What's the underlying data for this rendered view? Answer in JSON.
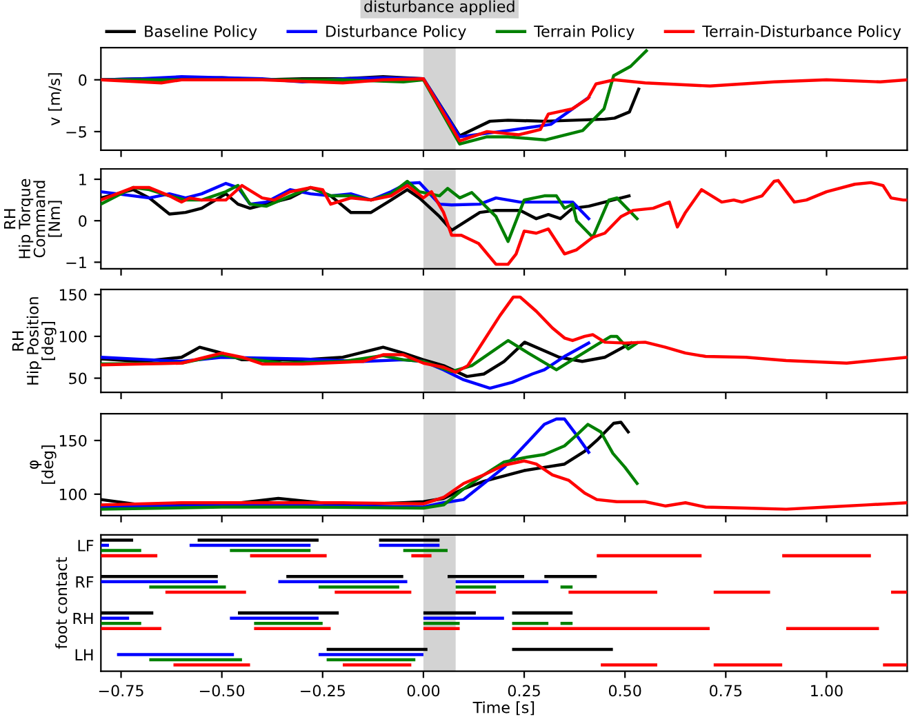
{
  "chart_data": [
    {
      "type": "line",
      "ylabel": "v [m/s]",
      "xlim": [
        -0.8,
        1.2
      ],
      "ylim": [
        -6.8,
        3.1
      ],
      "yticks": [
        {
          "value": -5,
          "label": "−5"
        },
        0
      ],
      "tick_labels": "y",
      "legend": "top",
      "grid": false,
      "bands": [
        {
          "axis": "x",
          "from": 0,
          "to": 0.08,
          "label": "disturbance applied",
          "color": "#d3d3d3"
        }
      ],
      "series": [
        {
          "name": "Baseline Policy",
          "color": "#000000",
          "x": [
            -0.8,
            -0.7,
            -0.6,
            -0.5,
            -0.4,
            -0.3,
            -0.2,
            -0.1,
            0,
            0.09,
            0.165,
            0.21,
            0.3,
            0.45,
            0.474,
            0.511,
            0.534
          ],
          "values": [
            0,
            0.1,
            0.1,
            0.2,
            0,
            0.1,
            0.1,
            0.3,
            0.1,
            -5.4,
            -4.0,
            -3.9,
            -4.0,
            -3.8,
            -3.7,
            -3.1,
            -0.9
          ]
        },
        {
          "name": "Disturbance Policy",
          "color": "#0000ff",
          "x": [
            -0.8,
            -0.7,
            -0.6,
            -0.5,
            -0.4,
            -0.3,
            -0.2,
            -0.1,
            0,
            0.09,
            0.21,
            0.316,
            0.41
          ],
          "values": [
            0,
            0.1,
            0.3,
            0.2,
            0.1,
            -0.2,
            0.1,
            0.2,
            0.1,
            -5.5,
            -4.9,
            -4.3,
            -1.7
          ]
        },
        {
          "name": "Terrain Policy",
          "color": "#008000",
          "x": [
            -0.8,
            -0.6,
            -0.4,
            -0.2,
            -0.05,
            0,
            0.09,
            0.158,
            0.21,
            0.303,
            0.395,
            0.448,
            0.472,
            0.514,
            0.553
          ],
          "values": [
            0,
            0,
            0,
            0,
            -0.2,
            0,
            -6.2,
            -5.5,
            -5.5,
            -5.8,
            -4.9,
            -2.8,
            0.4,
            1.3,
            2.8
          ]
        },
        {
          "name": "Terrain-Disturbance Policy",
          "color": "#ff0000",
          "x": [
            -0.8,
            -0.65,
            -0.6,
            -0.4,
            -0.2,
            -0.1,
            0,
            0.09,
            0.158,
            0.237,
            0.29,
            0.31,
            0.369,
            0.408,
            0.428,
            0.474,
            0.55,
            0.711,
            0.87,
            1.0,
            1.133,
            1.2
          ],
          "values": [
            0,
            -0.3,
            0,
            0,
            -0.3,
            0,
            0.1,
            -5.9,
            -5.0,
            -5.3,
            -4.8,
            -3.3,
            -2.8,
            -1.8,
            -0.4,
            0,
            -0.3,
            -0.6,
            -0.2,
            0,
            -0.2,
            0
          ]
        }
      ]
    },
    {
      "type": "line",
      "ylabel": "RH\nHip Torque\nCommand\n[Nm]",
      "xlim": [
        -0.8,
        1.2
      ],
      "ylim": [
        -1.16,
        1.25
      ],
      "yticks": [
        {
          "value": -1,
          "label": "−1"
        },
        0,
        1
      ],
      "tick_labels": "y",
      "grid": false,
      "bands": [
        {
          "axis": "x",
          "from": 0,
          "to": 0.08,
          "color": "#d3d3d3"
        }
      ],
      "series": [
        {
          "color": "#000000",
          "x": [
            -0.8,
            -0.72,
            -0.68,
            -0.63,
            -0.59,
            -0.55,
            -0.49,
            -0.46,
            -0.43,
            -0.39,
            -0.33,
            -0.28,
            -0.23,
            -0.18,
            -0.13,
            -0.08,
            -0.04,
            -0.01,
            0.04,
            0.07,
            0.14,
            0.18,
            0.24,
            0.28,
            0.31,
            0.34,
            0.37,
            0.41,
            0.45,
            0.51
          ],
          "values": [
            0.55,
            0.75,
            0.55,
            0.16,
            0.2,
            0.3,
            0.65,
            0.4,
            0.3,
            0.4,
            0.55,
            0.8,
            0.6,
            0.2,
            0.2,
            0.5,
            0.75,
            0.55,
            0.1,
            -0.23,
            0.2,
            0.25,
            0.25,
            0.05,
            0.15,
            0.05,
            0.3,
            0.35,
            0.45,
            0.6
          ]
        },
        {
          "color": "#0000ff",
          "x": [
            -0.8,
            -0.72,
            -0.68,
            -0.63,
            -0.59,
            -0.55,
            -0.49,
            -0.46,
            -0.43,
            -0.39,
            -0.33,
            -0.28,
            -0.23,
            -0.18,
            -0.13,
            -0.08,
            -0.04,
            -0.01,
            0.04,
            0.07,
            0.14,
            0.18,
            0.24,
            0.28,
            0.31,
            0.37,
            0.41
          ],
          "values": [
            0.7,
            0.6,
            0.55,
            0.65,
            0.55,
            0.65,
            0.9,
            0.8,
            0.4,
            0.45,
            0.75,
            0.65,
            0.6,
            0.65,
            0.5,
            0.7,
            0.9,
            0.92,
            0.4,
            0.38,
            0.4,
            0.55,
            0.45,
            0.45,
            0.45,
            0.45,
            0.05
          ]
        },
        {
          "color": "#008000",
          "x": [
            -0.8,
            -0.72,
            -0.68,
            -0.63,
            -0.59,
            -0.55,
            -0.49,
            -0.46,
            -0.43,
            -0.39,
            -0.33,
            -0.28,
            -0.23,
            -0.18,
            -0.13,
            -0.08,
            -0.04,
            -0.01,
            0.04,
            0.06,
            0.09,
            0.12,
            0.18,
            0.21,
            0.25,
            0.3,
            0.33,
            0.35,
            0.37,
            0.38,
            0.42,
            0.46,
            0.48,
            0.53
          ],
          "values": [
            0.4,
            0.8,
            0.75,
            0.6,
            0.5,
            0.5,
            0.7,
            0.85,
            0.4,
            0.35,
            0.6,
            0.8,
            0.6,
            0.6,
            0.5,
            0.65,
            0.95,
            0.7,
            0.6,
            0.78,
            0.55,
            0.68,
            0.1,
            -0.5,
            0.5,
            0.6,
            0.6,
            0.3,
            0.4,
            0,
            -0.4,
            0.5,
            0.55,
            0.05
          ]
        },
        {
          "color": "#ff0000",
          "x": [
            -0.8,
            -0.72,
            -0.68,
            -0.63,
            -0.6,
            -0.58,
            -0.55,
            -0.49,
            -0.45,
            -0.4,
            -0.37,
            -0.33,
            -0.28,
            -0.25,
            -0.23,
            -0.18,
            -0.13,
            -0.08,
            -0.04,
            0,
            0.02,
            0.05,
            0.07,
            0.094,
            0.137,
            0.18,
            0.21,
            0.23,
            0.25,
            0.28,
            0.31,
            0.35,
            0.38,
            0.42,
            0.45,
            0.49,
            0.52,
            0.57,
            0.61,
            0.63,
            0.65,
            0.69,
            0.74,
            0.77,
            0.79,
            0.84,
            0.87,
            0.88,
            0.92,
            0.95,
            1.0,
            1.07,
            1.11,
            1.14,
            1.16,
            1.19,
            1.2
          ],
          "values": [
            0.5,
            0.8,
            0.8,
            0.6,
            0.45,
            0.55,
            0.5,
            0.5,
            0.85,
            0.55,
            0.5,
            0.7,
            0.8,
            0.75,
            0.4,
            0.55,
            0.5,
            0.6,
            0.85,
            0.55,
            0.7,
            0.2,
            -0.35,
            -0.35,
            -0.55,
            -1.05,
            -1.05,
            -0.8,
            -0.25,
            -0.3,
            -0.2,
            -0.8,
            -0.7,
            -0.4,
            -0.3,
            0.1,
            0.25,
            0.3,
            0.45,
            -0.15,
            0.2,
            0.75,
            0.45,
            0.5,
            0.45,
            0.6,
            0.95,
            0.97,
            0.45,
            0.5,
            0.7,
            0.88,
            0.92,
            0.85,
            0.55,
            0.5,
            0.5
          ]
        }
      ]
    },
    {
      "type": "line",
      "ylabel": "RH\nHip Position\n[deg]",
      "xlim": [
        -0.8,
        1.2
      ],
      "ylim": [
        33,
        156
      ],
      "yticks": [
        50,
        100,
        150
      ],
      "tick_labels": "y",
      "grid": false,
      "bands": [
        {
          "axis": "x",
          "from": 0,
          "to": 0.08,
          "color": "#d3d3d3"
        }
      ],
      "series": [
        {
          "color": "#000000",
          "x": [
            -0.8,
            -0.7,
            -0.6,
            -0.555,
            -0.5,
            -0.45,
            -0.3,
            -0.2,
            -0.1,
            -0.05,
            0,
            0.05,
            0.108,
            0.15,
            0.2,
            0.251,
            0.337,
            0.394,
            0.45,
            0.515
          ],
          "values": [
            73,
            70,
            75,
            87,
            80,
            72,
            72,
            75,
            87,
            80,
            72,
            65,
            52,
            55,
            70,
            93,
            75,
            70,
            75,
            92
          ]
        },
        {
          "color": "#0000ff",
          "x": [
            -0.8,
            -0.6,
            -0.5,
            -0.3,
            -0.15,
            -0.05,
            0,
            0.05,
            0.1,
            0.165,
            0.22,
            0.27,
            0.3,
            0.35,
            0.41
          ],
          "values": [
            75,
            70,
            75,
            73,
            70,
            72,
            70,
            60,
            48,
            38,
            45,
            55,
            60,
            76,
            92
          ]
        },
        {
          "color": "#008000",
          "x": [
            -0.8,
            -0.6,
            -0.5,
            -0.47,
            -0.35,
            -0.2,
            -0.1,
            -0.05,
            0,
            0.07,
            0.12,
            0.21,
            0.26,
            0.33,
            0.38,
            0.43,
            0.465,
            0.48,
            0.508,
            0.53
          ],
          "values": [
            67,
            68,
            78,
            75,
            68,
            70,
            77,
            72,
            70,
            58,
            65,
            95,
            80,
            60,
            75,
            90,
            100,
            100,
            85,
            92
          ]
        },
        {
          "color": "#ff0000",
          "x": [
            -0.8,
            -0.6,
            -0.5,
            -0.45,
            -0.4,
            -0.3,
            -0.15,
            -0.1,
            -0.05,
            0,
            0.05,
            0.08,
            0.11,
            0.15,
            0.19,
            0.223,
            0.24,
            0.28,
            0.32,
            0.35,
            0.37,
            0.4,
            0.42,
            0.45,
            0.5,
            0.55,
            0.6,
            0.65,
            0.7,
            0.8,
            0.9,
            1.0,
            1.05,
            1.2
          ],
          "values": [
            66,
            68,
            80,
            75,
            67,
            67,
            70,
            78,
            78,
            68,
            63,
            57,
            65,
            95,
            125,
            147,
            147,
            130,
            110,
            98,
            95,
            100,
            102,
            93,
            92,
            93,
            87,
            80,
            76,
            75,
            71,
            69,
            68,
            75
          ]
        }
      ]
    },
    {
      "type": "line",
      "ylabel": "φ\n[deg]",
      "xlim": [
        -0.8,
        1.2
      ],
      "ylim": [
        80,
        175
      ],
      "yticks": [
        100,
        150
      ],
      "tick_labels": "y",
      "grid": false,
      "bands": [
        {
          "axis": "x",
          "from": 0,
          "to": 0.08,
          "color": "#d3d3d3"
        }
      ],
      "series": [
        {
          "color": "#000000",
          "x": [
            -0.8,
            -0.7,
            -0.5,
            -0.36,
            -0.2,
            -0.05,
            0,
            0.05,
            0.1,
            0.15,
            0.2,
            0.25,
            0.3,
            0.35,
            0.4,
            0.43,
            0.472,
            0.49,
            0.508
          ],
          "values": [
            95,
            90,
            90,
            96,
            90,
            92,
            93,
            96,
            105,
            112,
            117,
            122,
            125,
            128,
            140,
            150,
            166,
            167,
            158
          ]
        },
        {
          "color": "#0000ff",
          "x": [
            -0.8,
            -0.6,
            -0.4,
            -0.2,
            0,
            0.05,
            0.1,
            0.15,
            0.2,
            0.25,
            0.3,
            0.33,
            0.35,
            0.38,
            0.41
          ],
          "values": [
            88,
            89,
            90,
            89,
            88,
            92,
            95,
            110,
            125,
            145,
            165,
            170,
            170,
            155,
            139
          ]
        },
        {
          "color": "#008000",
          "x": [
            -0.8,
            -0.5,
            -0.3,
            0,
            0.05,
            0.1,
            0.15,
            0.2,
            0.25,
            0.3,
            0.35,
            0.38,
            0.408,
            0.44,
            0.47,
            0.5,
            0.53
          ],
          "values": [
            86,
            88,
            88,
            87,
            90,
            105,
            118,
            130,
            134,
            137,
            145,
            155,
            165,
            158,
            138,
            125,
            110
          ]
        },
        {
          "color": "#ff0000",
          "x": [
            -0.8,
            -0.6,
            -0.4,
            -0.2,
            0,
            0.05,
            0.1,
            0.15,
            0.2,
            0.25,
            0.28,
            0.32,
            0.36,
            0.4,
            0.43,
            0.48,
            0.55,
            0.6,
            0.65,
            0.7,
            0.8,
            0.9,
            1.0,
            1.1,
            1.2
          ],
          "values": [
            90,
            92,
            92,
            92,
            91,
            97,
            110,
            118,
            127,
            131,
            128,
            118,
            113,
            101,
            95,
            93,
            93,
            89,
            92,
            88,
            87,
            86,
            88,
            90,
            92
          ]
        }
      ]
    },
    {
      "type": "bar",
      "orientation": "horizontal",
      "ylabel": "foot contact",
      "xlabel": "Time [s]",
      "xlim": [
        -0.8,
        1.2
      ],
      "xticks": [
        {
          "value": -0.75,
          "label": "−0.75"
        },
        {
          "value": -0.5,
          "label": "−0.50"
        },
        {
          "value": -0.25,
          "label": "−0.25"
        },
        {
          "value": 0,
          "label": "0.00"
        },
        {
          "value": 0.25,
          "label": "0.25"
        },
        {
          "value": 0.5,
          "label": "0.50"
        },
        {
          "value": 0.75,
          "label": "0.75"
        },
        {
          "value": 1.0,
          "label": "1.00"
        }
      ],
      "grid": false,
      "bands": [
        {
          "axis": "x",
          "from": 0,
          "to": 0.08,
          "color": "#d3d3d3"
        }
      ],
      "categories": [
        null,
        "LF",
        null,
        null,
        null,
        null,
        null,
        null,
        "RF",
        null,
        null,
        null,
        null,
        null,
        null,
        "RH",
        null,
        null,
        null,
        null,
        null,
        null,
        "LH",
        null,
        null
      ],
      "series": [
        {
          "colors": [
            "#000000",
            "#0000ff",
            "#008000",
            "#ff0000",
            null,
            null,
            null,
            "#000000",
            "#0000ff",
            "#008000",
            "#ff0000",
            null,
            null,
            null,
            "#000000",
            "#0000ff",
            "#008000",
            "#ff0000",
            null,
            null,
            null,
            "#000000",
            "#0000ff",
            "#008000",
            "#ff0000"
          ],
          "base": [
            -0.8,
            -0.8,
            -0.8,
            -0.8,
            null,
            null,
            null,
            -0.8,
            -0.8,
            -0.68,
            -0.64,
            null,
            null,
            null,
            -0.8,
            -0.8,
            -0.8,
            -0.8,
            null,
            null,
            null,
            -0.24,
            -0.76,
            -0.68,
            -0.62
          ],
          "values": [
            0.08,
            0.02,
            0.1,
            0.14,
            null,
            null,
            null,
            0.29,
            0.29,
            0.19,
            0.2,
            null,
            null,
            null,
            0.13,
            0.07,
            0.1,
            0.15,
            null,
            null,
            null,
            0.25,
            0.29,
            0.23,
            0.19
          ]
        },
        {
          "colors": [
            "#000000",
            "#0000ff",
            "#008000",
            "#ff0000",
            null,
            null,
            null,
            "#000000",
            "#0000ff",
            "#008000",
            "#ff0000",
            null,
            null,
            null,
            "#000000",
            "#0000ff",
            "#008000",
            "#ff0000",
            null,
            null,
            null,
            "#000000",
            "#0000ff",
            "#008000",
            "#ff0000"
          ],
          "base": [
            -0.56,
            -0.58,
            -0.48,
            -0.43,
            null,
            null,
            null,
            -0.34,
            -0.36,
            -0.26,
            -0.22,
            null,
            null,
            null,
            -0.46,
            -0.48,
            -0.42,
            -0.42,
            null,
            null,
            null,
            0.22,
            -0.26,
            -0.24,
            -0.2
          ],
          "values": [
            0.3,
            0.3,
            0.2,
            0.19,
            null,
            null,
            null,
            0.29,
            0.32,
            0.2,
            0.19,
            null,
            null,
            null,
            0.25,
            0.22,
            0.17,
            0.19,
            null,
            null,
            null,
            0.25,
            0.26,
            0.22,
            0.17
          ]
        },
        {
          "colors": [
            "#000000",
            "#0000ff",
            "#008000",
            "#ff0000",
            null,
            null,
            null,
            "#000000",
            "#0000ff",
            "#008000",
            "#ff0000",
            null,
            null,
            null,
            "#000000",
            "#0000ff",
            "#008000",
            "#ff0000",
            null,
            null,
            null,
            "#000000",
            "#0000ff",
            "#008000",
            "#ff0000"
          ],
          "base": [
            -0.11,
            -0.11,
            -0.05,
            -0.03,
            null,
            null,
            null,
            0.06,
            0.08,
            0.08,
            0.08,
            null,
            null,
            null,
            0.0,
            0.0,
            0.0,
            0.0,
            null,
            null,
            null,
            null,
            null,
            null,
            0.44
          ],
          "values": [
            0.15,
            0.15,
            0.11,
            0.05,
            null,
            null,
            null,
            0.19,
            0.23,
            0.1,
            0.1,
            null,
            null,
            null,
            0.13,
            0.2,
            0.09,
            0.09,
            null,
            null,
            null,
            null,
            null,
            null,
            0.14
          ]
        },
        {
          "colors": [
            "#000000",
            "#0000ff",
            "#008000",
            "#ff0000",
            null,
            null,
            null,
            "#000000",
            "#0000ff",
            "#008000",
            "#ff0000",
            null,
            null,
            null,
            "#000000",
            "#0000ff",
            "#008000",
            "#ff0000",
            null,
            null,
            null,
            "#000000",
            "#0000ff",
            "#008000",
            "#ff0000"
          ],
          "base": [
            null,
            null,
            null,
            0.43,
            null,
            null,
            null,
            0.3,
            null,
            0.34,
            0.36,
            null,
            null,
            null,
            0.22,
            null,
            0.22,
            0.22,
            null,
            null,
            null,
            null,
            null,
            null,
            0.72
          ],
          "values": [
            null,
            null,
            null,
            0.26,
            null,
            null,
            null,
            0.13,
            null,
            0.03,
            0.22,
            null,
            null,
            null,
            0.15,
            null,
            0.09,
            0.49,
            null,
            null,
            null,
            null,
            null,
            null,
            0.17
          ]
        },
        {
          "colors": [
            "#000000",
            "#0000ff",
            "#008000",
            "#ff0000",
            null,
            null,
            null,
            "#000000",
            "#0000ff",
            "#008000",
            "#ff0000",
            null,
            null,
            null,
            "#000000",
            "#0000ff",
            "#008000",
            "#ff0000",
            null,
            null,
            null,
            "#000000",
            "#0000ff",
            "#008000",
            "#ff0000"
          ],
          "base": [
            null,
            null,
            null,
            0.89,
            null,
            null,
            null,
            null,
            null,
            null,
            0.72,
            null,
            null,
            null,
            null,
            null,
            0.34,
            0.9,
            null,
            null,
            null,
            null,
            null,
            null,
            1.14
          ],
          "values": [
            null,
            null,
            null,
            0.22,
            null,
            null,
            null,
            null,
            null,
            null,
            0.14,
            null,
            null,
            null,
            null,
            null,
            0.03,
            0.23,
            null,
            null,
            null,
            null,
            null,
            null,
            0.06
          ]
        },
        {
          "colors": [
            "#000000",
            "#0000ff",
            "#008000",
            "#ff0000",
            null,
            null,
            null,
            "#000000",
            "#0000ff",
            "#008000",
            "#ff0000",
            null,
            null,
            null,
            "#000000",
            "#0000ff",
            "#008000",
            "#ff0000",
            null,
            null,
            null,
            "#000000",
            "#0000ff",
            "#008000",
            "#ff0000"
          ],
          "base": [
            null,
            null,
            null,
            null,
            null,
            null,
            null,
            null,
            null,
            null,
            1.16,
            null,
            null,
            null,
            null,
            null,
            null,
            null,
            null,
            null,
            null,
            null,
            null,
            null,
            null
          ],
          "values": [
            null,
            null,
            null,
            null,
            null,
            null,
            null,
            null,
            null,
            null,
            0.04,
            null,
            null,
            null,
            null,
            null,
            null,
            null,
            null,
            null,
            null,
            null,
            null,
            null,
            null
          ]
        }
      ]
    }
  ]
}
